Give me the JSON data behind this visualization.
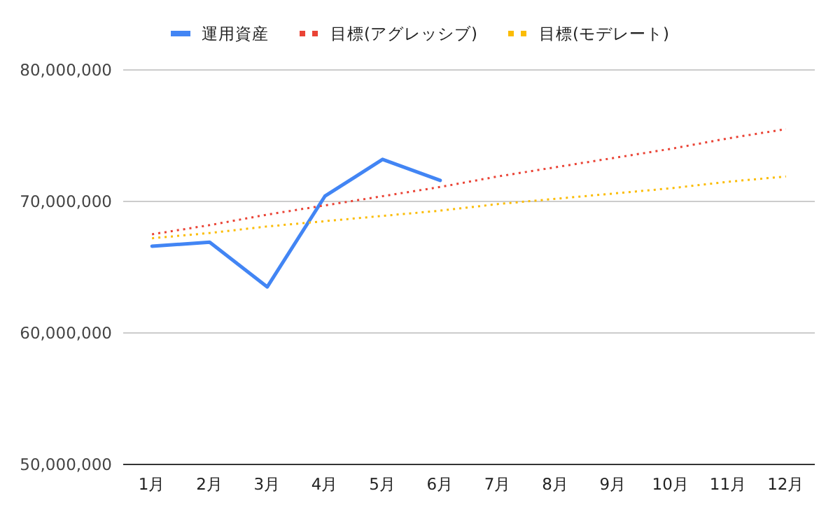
{
  "chart_data": {
    "type": "line",
    "categories": [
      "1月",
      "2月",
      "3月",
      "4月",
      "5月",
      "6月",
      "7月",
      "8月",
      "9月",
      "10月",
      "11月",
      "12月"
    ],
    "series": [
      {
        "name": "運用資産",
        "color": "#4285f4",
        "line_style": "solid",
        "values": [
          66600000,
          66900000,
          63500000,
          70400000,
          73200000,
          71600000,
          null,
          null,
          null,
          null,
          null,
          null
        ]
      },
      {
        "name": "目標(アグレッシブ)",
        "color": "#ea4335",
        "line_style": "dotted",
        "values": [
          67500000,
          68200000,
          69000000,
          69700000,
          70400000,
          71100000,
          71900000,
          72600000,
          73300000,
          74000000,
          74800000,
          75500000
        ]
      },
      {
        "name": "目標(モデレート)",
        "color": "#fbbc04",
        "line_style": "dotted",
        "values": [
          67200000,
          67600000,
          68100000,
          68500000,
          68900000,
          69300000,
          69800000,
          70200000,
          70600000,
          71000000,
          71500000,
          71900000
        ]
      }
    ],
    "ylim": [
      50000000,
      80000000
    ],
    "yticks": [
      {
        "value": 50000000,
        "label": "50,000,000"
      },
      {
        "value": 60000000,
        "label": "60,000,000"
      },
      {
        "value": 70000000,
        "label": "70,000,000"
      },
      {
        "value": 80000000,
        "label": "80,000,000"
      }
    ],
    "grid": "y",
    "legend": "top",
    "marker": "none"
  }
}
